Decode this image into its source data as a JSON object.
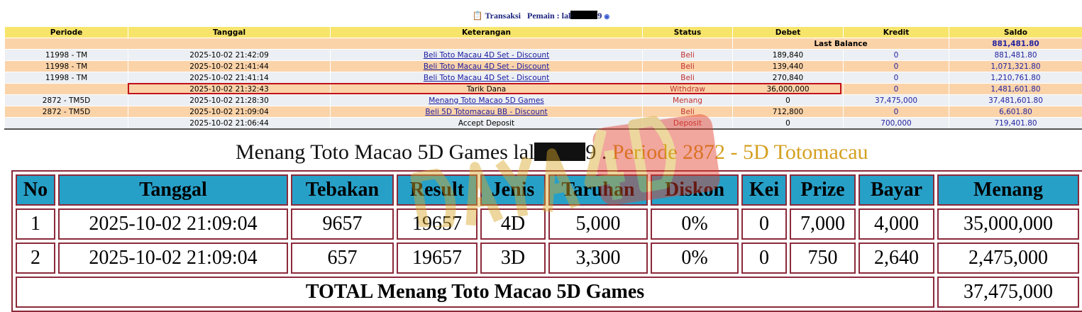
{
  "header": {
    "icon": "clipboard-icon",
    "transaksi": "Transaksi",
    "pemain_label": "Pemain : lal",
    "pemain_suffix": "9",
    "info_icon": "info-icon"
  },
  "columns": [
    "Periode",
    "Tanggal",
    "Keterangan",
    "Status",
    "Debet",
    "Kredit",
    "Saldo"
  ],
  "last_balance": {
    "label": "Last Balance",
    "value": "881,481.80"
  },
  "rows": [
    {
      "periode": "11998 - TM",
      "tanggal": "2025-10-02 21:42:09",
      "keterangan": "Beli Toto Macau 4D Set - Discount",
      "link": true,
      "status": "Beli",
      "debet": "189,840",
      "kredit": "0",
      "saldo": "881,481.80"
    },
    {
      "periode": "11998 - TM",
      "tanggal": "2025-10-02 21:41:44",
      "keterangan": "Beli Toto Macau 4D Set - Discount",
      "link": true,
      "status": "Beli",
      "debet": "139,440",
      "kredit": "0",
      "saldo": "1,071,321.80"
    },
    {
      "periode": "11998 - TM",
      "tanggal": "2025-10-02 21:41:14",
      "keterangan": "Beli Toto Macau 4D Set - Discount",
      "link": true,
      "status": "Beli",
      "debet": "270,840",
      "kredit": "0",
      "saldo": "1,210,761.80"
    },
    {
      "periode": "",
      "tanggal": "2025-10-02 21:32:43",
      "keterangan": "Tarik Dana",
      "link": false,
      "status": "Withdraw",
      "debet": "36,000,000",
      "kredit": "0",
      "saldo": "1,481,601.80",
      "highlighted": true
    },
    {
      "periode": "2872 - TM5D",
      "tanggal": "2025-10-02 21:28:30",
      "keterangan": "Menang Toto Macao 5D Games",
      "link": true,
      "status": "Menang",
      "debet": "0",
      "kredit": "37,475,000",
      "saldo": "37,481,601.80"
    },
    {
      "periode": "2872 - TM5D",
      "tanggal": "2025-10-02 21:09:04",
      "keterangan": "Beli 5D Totomacau BB - Discount",
      "link": true,
      "status": "Beli",
      "debet": "712,800",
      "kredit": "0",
      "saldo": "6,601.80"
    },
    {
      "periode": "",
      "tanggal": "2025-10-02 21:06:44",
      "keterangan": "Accept Deposit",
      "link": false,
      "status": "Deposit",
      "debet": "0",
      "kredit": "700,000",
      "saldo": "719,401.80"
    }
  ],
  "win": {
    "title": "Menang Toto Macao 5D Games lal",
    "title_suffix": "9 .",
    "periode": "Periode 2872 - 5D Totomacau",
    "columns": [
      "No",
      "Tanggal",
      "Tebakan",
      "Result",
      "Jenis",
      "Taruhan",
      "Diskon",
      "Kei",
      "Prize",
      "Bayar",
      "Menang"
    ],
    "rows": [
      [
        "1",
        "2025-10-02 21:09:04",
        "9657",
        "19657",
        "4D",
        "5,000",
        "0%",
        "0",
        "7,000",
        "4,000",
        "35,000,000"
      ],
      [
        "2",
        "2025-10-02 21:09:04",
        "657",
        "19657",
        "3D",
        "3,300",
        "0%",
        "0",
        "750",
        "2,640",
        "2,475,000"
      ]
    ],
    "total_label": "TOTAL  Menang Toto Macao 5D Games",
    "total_value": "37,475,000"
  },
  "watermark": "DAYA4D",
  "colors": {
    "header_yellow": "#f7e46a",
    "row_orange": "#fbd3a9",
    "row_gray": "#eceff3",
    "win_header": "#27a0c8",
    "border": "#8b2a3a",
    "highlight": "#c0101a"
  }
}
